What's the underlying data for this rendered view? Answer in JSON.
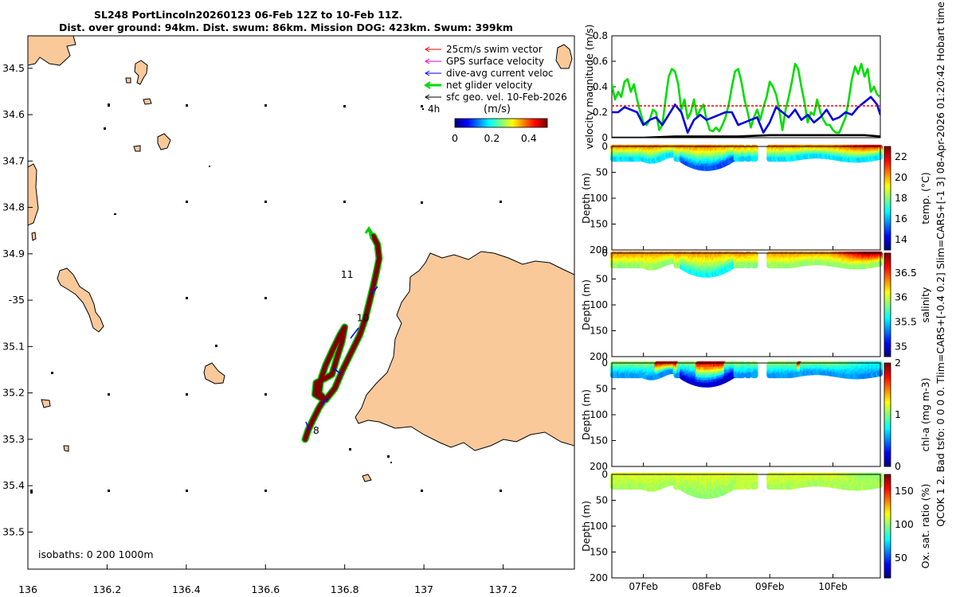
{
  "title": {
    "line1": "SL248 PortLincoln20260123 06-Feb 12Z to 10-Feb 11Z.",
    "line2": "Dist. over ground: 94km. Dist. swum: 86km. Mission DOG: 423km. Swum: 399km"
  },
  "side_label": "QCOK 1 2. Bad tsfo: 0 0 0 0. Tlim=CARS+[-0.4 0.2] Slim=CARS+[-1 3] 08-Apr-2026 01:20:42 Hobart time",
  "colors": {
    "land": "#f9c99a",
    "coast": "#000000",
    "track": "#7f0000",
    "net_velocity": "#00cc00",
    "current": "#0000ff",
    "swim": "#ff0000",
    "gps": "#e000e0",
    "geo": "#000000"
  },
  "chart_data": [
    {
      "type": "map",
      "name": "glider track",
      "xlabel": "",
      "ylabel": "",
      "xlim": [
        136.0,
        137.38
      ],
      "ylim": [
        -35.58,
        -34.43
      ],
      "x_ticks": [
        136.0,
        136.2,
        136.4,
        136.6,
        136.8,
        137.0,
        137.2
      ],
      "x_tick_labels": [
        "136",
        "136.2",
        "136.4",
        "136.6",
        "136.8",
        "137",
        "137.2"
      ],
      "y_ticks": [
        -34.5,
        -34.6,
        -34.7,
        -34.8,
        -34.9,
        -35.0,
        -35.1,
        -35.2,
        -35.3,
        -35.4,
        -35.5
      ],
      "y_tick_labels": [
        "34.5",
        "34.6",
        "34.7",
        "34.8",
        "34.9",
        "-35",
        "35.1",
        "35.2",
        "35.3",
        "35.4",
        "35.5"
      ],
      "legend": {
        "placement": "top-right",
        "entries": [
          {
            "label": "25cm/s swim vector",
            "color": "#ff0000"
          },
          {
            "label": "GPS surface velocity",
            "color": "#e000e0"
          },
          {
            "label": "dive-avg current veloc",
            "color": "#0000ff"
          },
          {
            "label": "net glider velocity",
            "color": "#00cc00"
          },
          {
            "label": "sfc geo. vel. 10-Feb-2026",
            "color": "#000000"
          }
        ],
        "time_marker": "4h"
      },
      "colorbar": {
        "title": "(m/s)",
        "range": [
          0,
          0.5
        ],
        "ticks": [
          0,
          0.2,
          0.4
        ],
        "tick_labels": [
          "0",
          "0.2",
          "0.4"
        ]
      },
      "isobaths": "isobaths: 0   200  1000m",
      "day_labels": [
        {
          "label": "11",
          "lon": 136.79,
          "lat": -34.952
        },
        {
          "label": "10",
          "lon": 136.83,
          "lat": -35.045
        },
        {
          "label": "8",
          "lon": 136.72,
          "lat": -35.288
        }
      ],
      "track": [
        [
          136.7,
          -35.3
        ],
        [
          136.708,
          -35.28
        ],
        [
          136.72,
          -35.258
        ],
        [
          136.735,
          -35.232
        ],
        [
          136.748,
          -35.215
        ],
        [
          136.725,
          -35.203
        ],
        [
          136.728,
          -35.178
        ],
        [
          136.748,
          -35.17
        ],
        [
          136.768,
          -35.16
        ],
        [
          136.782,
          -35.12
        ],
        [
          136.793,
          -35.09
        ],
        [
          136.8,
          -35.058
        ],
        [
          136.788,
          -35.075
        ],
        [
          136.768,
          -35.11
        ],
        [
          136.752,
          -35.14
        ],
        [
          136.74,
          -35.17
        ],
        [
          136.735,
          -35.2
        ],
        [
          136.752,
          -35.215
        ],
        [
          136.775,
          -35.19
        ],
        [
          136.795,
          -35.15
        ],
        [
          136.818,
          -35.11
        ],
        [
          136.838,
          -35.075
        ],
        [
          136.852,
          -35.04
        ],
        [
          136.862,
          -35.005
        ],
        [
          136.872,
          -34.97
        ],
        [
          136.88,
          -34.94
        ],
        [
          136.887,
          -34.91
        ],
        [
          136.883,
          -34.88
        ],
        [
          136.872,
          -34.862
        ]
      ]
    },
    {
      "type": "line",
      "name": "velocity magnitude",
      "ylabel": "velocity magnitude (m/s)",
      "ylim": [
        0,
        0.8
      ],
      "y_ticks": [
        0,
        0.2,
        0.4,
        0.6,
        0.8
      ],
      "y_tick_labels": [
        "0",
        "0.2",
        "0.4",
        "0.6",
        "0.8"
      ],
      "xlim": [
        6.5,
        10.75
      ],
      "series": [
        {
          "name": "net glider velocity",
          "color": "#00dd00",
          "x": [
            6.5,
            6.55,
            6.6,
            6.65,
            6.7,
            6.75,
            6.8,
            6.85,
            6.9,
            6.95,
            7.0,
            7.05,
            7.1,
            7.15,
            7.2,
            7.25,
            7.3,
            7.35,
            7.4,
            7.45,
            7.5,
            7.55,
            7.6,
            7.65,
            7.7,
            7.75,
            7.8,
            7.85,
            7.9,
            7.95,
            8.0,
            8.05,
            8.1,
            8.15,
            8.2,
            8.25,
            8.3,
            8.35,
            8.4,
            8.45,
            8.5,
            8.55,
            8.6,
            8.65,
            8.7,
            8.75,
            8.8,
            8.85,
            8.9,
            8.95,
            9.0,
            9.05,
            9.1,
            9.15,
            9.2,
            9.25,
            9.3,
            9.35,
            9.4,
            9.45,
            9.5,
            9.55,
            9.6,
            9.65,
            9.7,
            9.75,
            9.8,
            9.85,
            9.9,
            9.95,
            10.0,
            10.05,
            10.1,
            10.15,
            10.2,
            10.25,
            10.3,
            10.35,
            10.4,
            10.45,
            10.5,
            10.55,
            10.6,
            10.65,
            10.7,
            10.75
          ],
          "y": [
            0.42,
            0.3,
            0.36,
            0.32,
            0.44,
            0.46,
            0.36,
            0.42,
            0.3,
            0.2,
            0.12,
            0.1,
            0.14,
            0.22,
            0.2,
            0.06,
            0.1,
            0.3,
            0.48,
            0.54,
            0.52,
            0.42,
            0.22,
            0.3,
            0.15,
            0.2,
            0.3,
            0.17,
            0.22,
            0.26,
            0.14,
            0.06,
            0.05,
            0.08,
            0.05,
            0.1,
            0.16,
            0.26,
            0.4,
            0.52,
            0.54,
            0.44,
            0.3,
            0.2,
            0.08,
            0.16,
            0.22,
            0.14,
            0.24,
            0.32,
            0.44,
            0.4,
            0.34,
            0.22,
            0.06,
            0.22,
            0.32,
            0.44,
            0.58,
            0.54,
            0.4,
            0.28,
            0.12,
            0.2,
            0.18,
            0.3,
            0.2,
            0.14,
            0.1,
            0.1,
            0.06,
            0.04,
            0.04,
            0.1,
            0.16,
            0.3,
            0.46,
            0.56,
            0.5,
            0.58,
            0.48,
            0.54,
            0.36,
            0.4,
            0.34,
            0.32
          ]
        },
        {
          "name": "dive-avg current velocity",
          "color": "#0000dd",
          "x": [
            6.5,
            6.6,
            6.7,
            6.8,
            6.9,
            7.0,
            7.1,
            7.2,
            7.3,
            7.4,
            7.5,
            7.6,
            7.7,
            7.8,
            7.9,
            8.0,
            8.1,
            8.2,
            8.3,
            8.4,
            8.5,
            8.6,
            8.7,
            8.8,
            8.9,
            9.0,
            9.1,
            9.2,
            9.3,
            9.4,
            9.5,
            9.6,
            9.7,
            9.8,
            9.9,
            10.0,
            10.1,
            10.2,
            10.3,
            10.4,
            10.5,
            10.6,
            10.7,
            10.75
          ],
          "y": [
            0.2,
            0.2,
            0.24,
            0.22,
            0.2,
            0.1,
            0.14,
            0.16,
            0.1,
            0.18,
            0.26,
            0.2,
            0.04,
            0.14,
            0.18,
            0.14,
            0.16,
            0.18,
            0.2,
            0.2,
            0.1,
            0.12,
            0.14,
            0.16,
            0.04,
            0.12,
            0.24,
            0.2,
            0.16,
            0.22,
            0.14,
            0.18,
            0.12,
            0.16,
            0.22,
            0.14,
            0.16,
            0.2,
            0.18,
            0.24,
            0.28,
            0.32,
            0.26,
            0.18
          ]
        },
        {
          "name": "swim speed",
          "color": "#ff0000",
          "dashed": true,
          "x": [
            6.5,
            10.75
          ],
          "y": [
            0.25,
            0.25
          ]
        },
        {
          "name": "sfc geo. vel.",
          "color": "#000000",
          "x": [
            6.5,
            7.0,
            7.5,
            8.0,
            8.5,
            9.0,
            9.5,
            10.0,
            10.5,
            10.75
          ],
          "y": [
            0.0,
            0.0,
            0.01,
            0.01,
            0.01,
            0.02,
            0.02,
            0.02,
            0.02,
            0.01
          ]
        }
      ]
    },
    {
      "type": "heatmap",
      "name": "temperature section",
      "variable": "temp",
      "ylabel": "Depth (m)",
      "ylim": [
        0,
        200
      ],
      "y_ticks": [
        0,
        50,
        100,
        150,
        200
      ],
      "y_tick_labels": [
        "0",
        "50",
        "100",
        "150",
        "200"
      ],
      "colorbar": {
        "label": "temp. (°C)",
        "range": [
          13,
          23
        ],
        "ticks": [
          14,
          16,
          18,
          20,
          22
        ],
        "tick_labels": [
          "14",
          "16",
          "18",
          "20",
          "22"
        ]
      },
      "surface_value": 20.5,
      "bottom_value": 16.5,
      "pocket_value": 15.0,
      "late_surface_value": 21.8
    },
    {
      "type": "heatmap",
      "name": "salinity section",
      "variable": "salinity",
      "ylabel": "Depth (m)",
      "ylim": [
        0,
        200
      ],
      "y_ticks": [
        0,
        50,
        100,
        150,
        200
      ],
      "y_tick_labels": [
        "0",
        "50",
        "100",
        "150",
        "200"
      ],
      "colorbar": {
        "label": "salinity",
        "range": [
          34.8,
          36.9
        ],
        "ticks": [
          35,
          35.5,
          36,
          36.5
        ],
        "tick_labels": [
          "35",
          "35.5",
          "36",
          "36.5"
        ]
      },
      "surface_value": 36.35,
      "bottom_value": 35.9,
      "pocket_value": 35.6,
      "late_surface_value": 36.85
    },
    {
      "type": "heatmap",
      "name": "chlorophyll section",
      "variable": "chl",
      "ylabel": "Depth (m)",
      "ylim": [
        0,
        200
      ],
      "y_ticks": [
        0,
        50,
        100,
        150,
        200
      ],
      "y_tick_labels": [
        "0",
        "50",
        "100",
        "150",
        "200"
      ],
      "colorbar": {
        "label": "chl-a (mg m-3)",
        "range": [
          0,
          2
        ],
        "ticks": [
          0,
          1,
          2
        ],
        "tick_labels": [
          "0",
          "1",
          "2"
        ]
      },
      "surface_value": 1.05,
      "bottom_value": 0.55,
      "pocket_value": 0.15,
      "late_surface_value": 0.8
    },
    {
      "type": "heatmap",
      "name": "oxygen section",
      "variable": "oxy",
      "ylabel": "Depth (m)",
      "ylim": [
        0,
        200
      ],
      "y_ticks": [
        0,
        50,
        100,
        150,
        200
      ],
      "y_tick_labels": [
        "0",
        "50",
        "100",
        "150",
        "200"
      ],
      "colorbar": {
        "label": "Ox. sat. ratio (%)",
        "range": [
          20,
          175
        ],
        "ticks": [
          50,
          100,
          150
        ],
        "tick_labels": [
          "50",
          "100",
          "150"
        ]
      },
      "surface_value": 112,
      "bottom_value": 104,
      "pocket_value": 100,
      "late_surface_value": 100
    },
    {
      "type": "time_axis",
      "name": "section time axis",
      "xlim": [
        6.5,
        10.75
      ],
      "x_ticks": [
        7.0,
        8.0,
        9.0,
        10.0
      ],
      "x_tick_labels": [
        "07Feb",
        "08Feb",
        "09Feb",
        "10Feb"
      ]
    }
  ]
}
